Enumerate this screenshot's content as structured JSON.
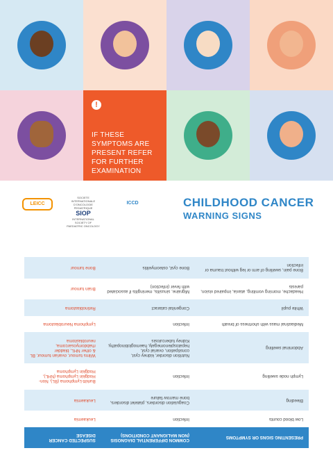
{
  "callout": "IF THESE SYMPTOMS ARE PRESENT REFER FOR FURTHER EXAMINATION",
  "logos": [
    "LEICC",
    "SIOP",
    "SOCIETE INTERNATIONALE D'ONCOLOGIE PEDIATRIQUE",
    "INTERNATIONAL SOCIETY OF PAEDIATRIC ONCOLOGY",
    "ICCD"
  ],
  "title": [
    "CHILDHOOD CANCER",
    "WARNING SIGNS"
  ],
  "table": {
    "header": [
      "PRESENTING SIGNS OR SYMPTOMS",
      "COMMON DIFFERENTIAL DIAGNOSIS (NON MALIGNANT CONDITIONS)",
      "SUSPECTED CANCER DISEASE"
    ],
    "rows": [
      [
        "Low blood counts",
        "Infection",
        "Leukaemia"
      ],
      [
        "Bleeding",
        "Coagulation disorders, platelet disorders, bone marrow failure",
        "Leukaemia"
      ],
      [
        "Lymph node swelling",
        "Infection",
        "Burkitt-Lymphoma (BL), Non-Hodgkin Lymphoma (NHL), Hodgkin Lymphoma"
      ],
      [
        "Abdominal swelling",
        "Nutrition disorder, kidney cyst, constipation, ovarial cyst, hepatosplenomegaly, haemoglobinopathy, Kidney tuberculosis",
        "Wilms tumour, ovarian tumour, BL & other NHL, bladder rhabdomyosarcoma, neuroblastoma"
      ],
      [
        "Mediastinal mass with shortness of breath",
        "Infection",
        "Lymphoma Neuroblastoma"
      ],
      [
        "White pupil",
        "Congenital cataract",
        "Retinoblastoma"
      ],
      [
        "Headache, morning vomiting, ataxia, impaired vision, paresis",
        "Migraine, sinusitis, meningitis if associated with fever (infection)",
        "Brain tumour"
      ],
      [
        "Bone pain, swelling of arm or leg without trauma or infection",
        "Bone cyst, osteomyelitis",
        "Bone tumour"
      ]
    ]
  }
}
